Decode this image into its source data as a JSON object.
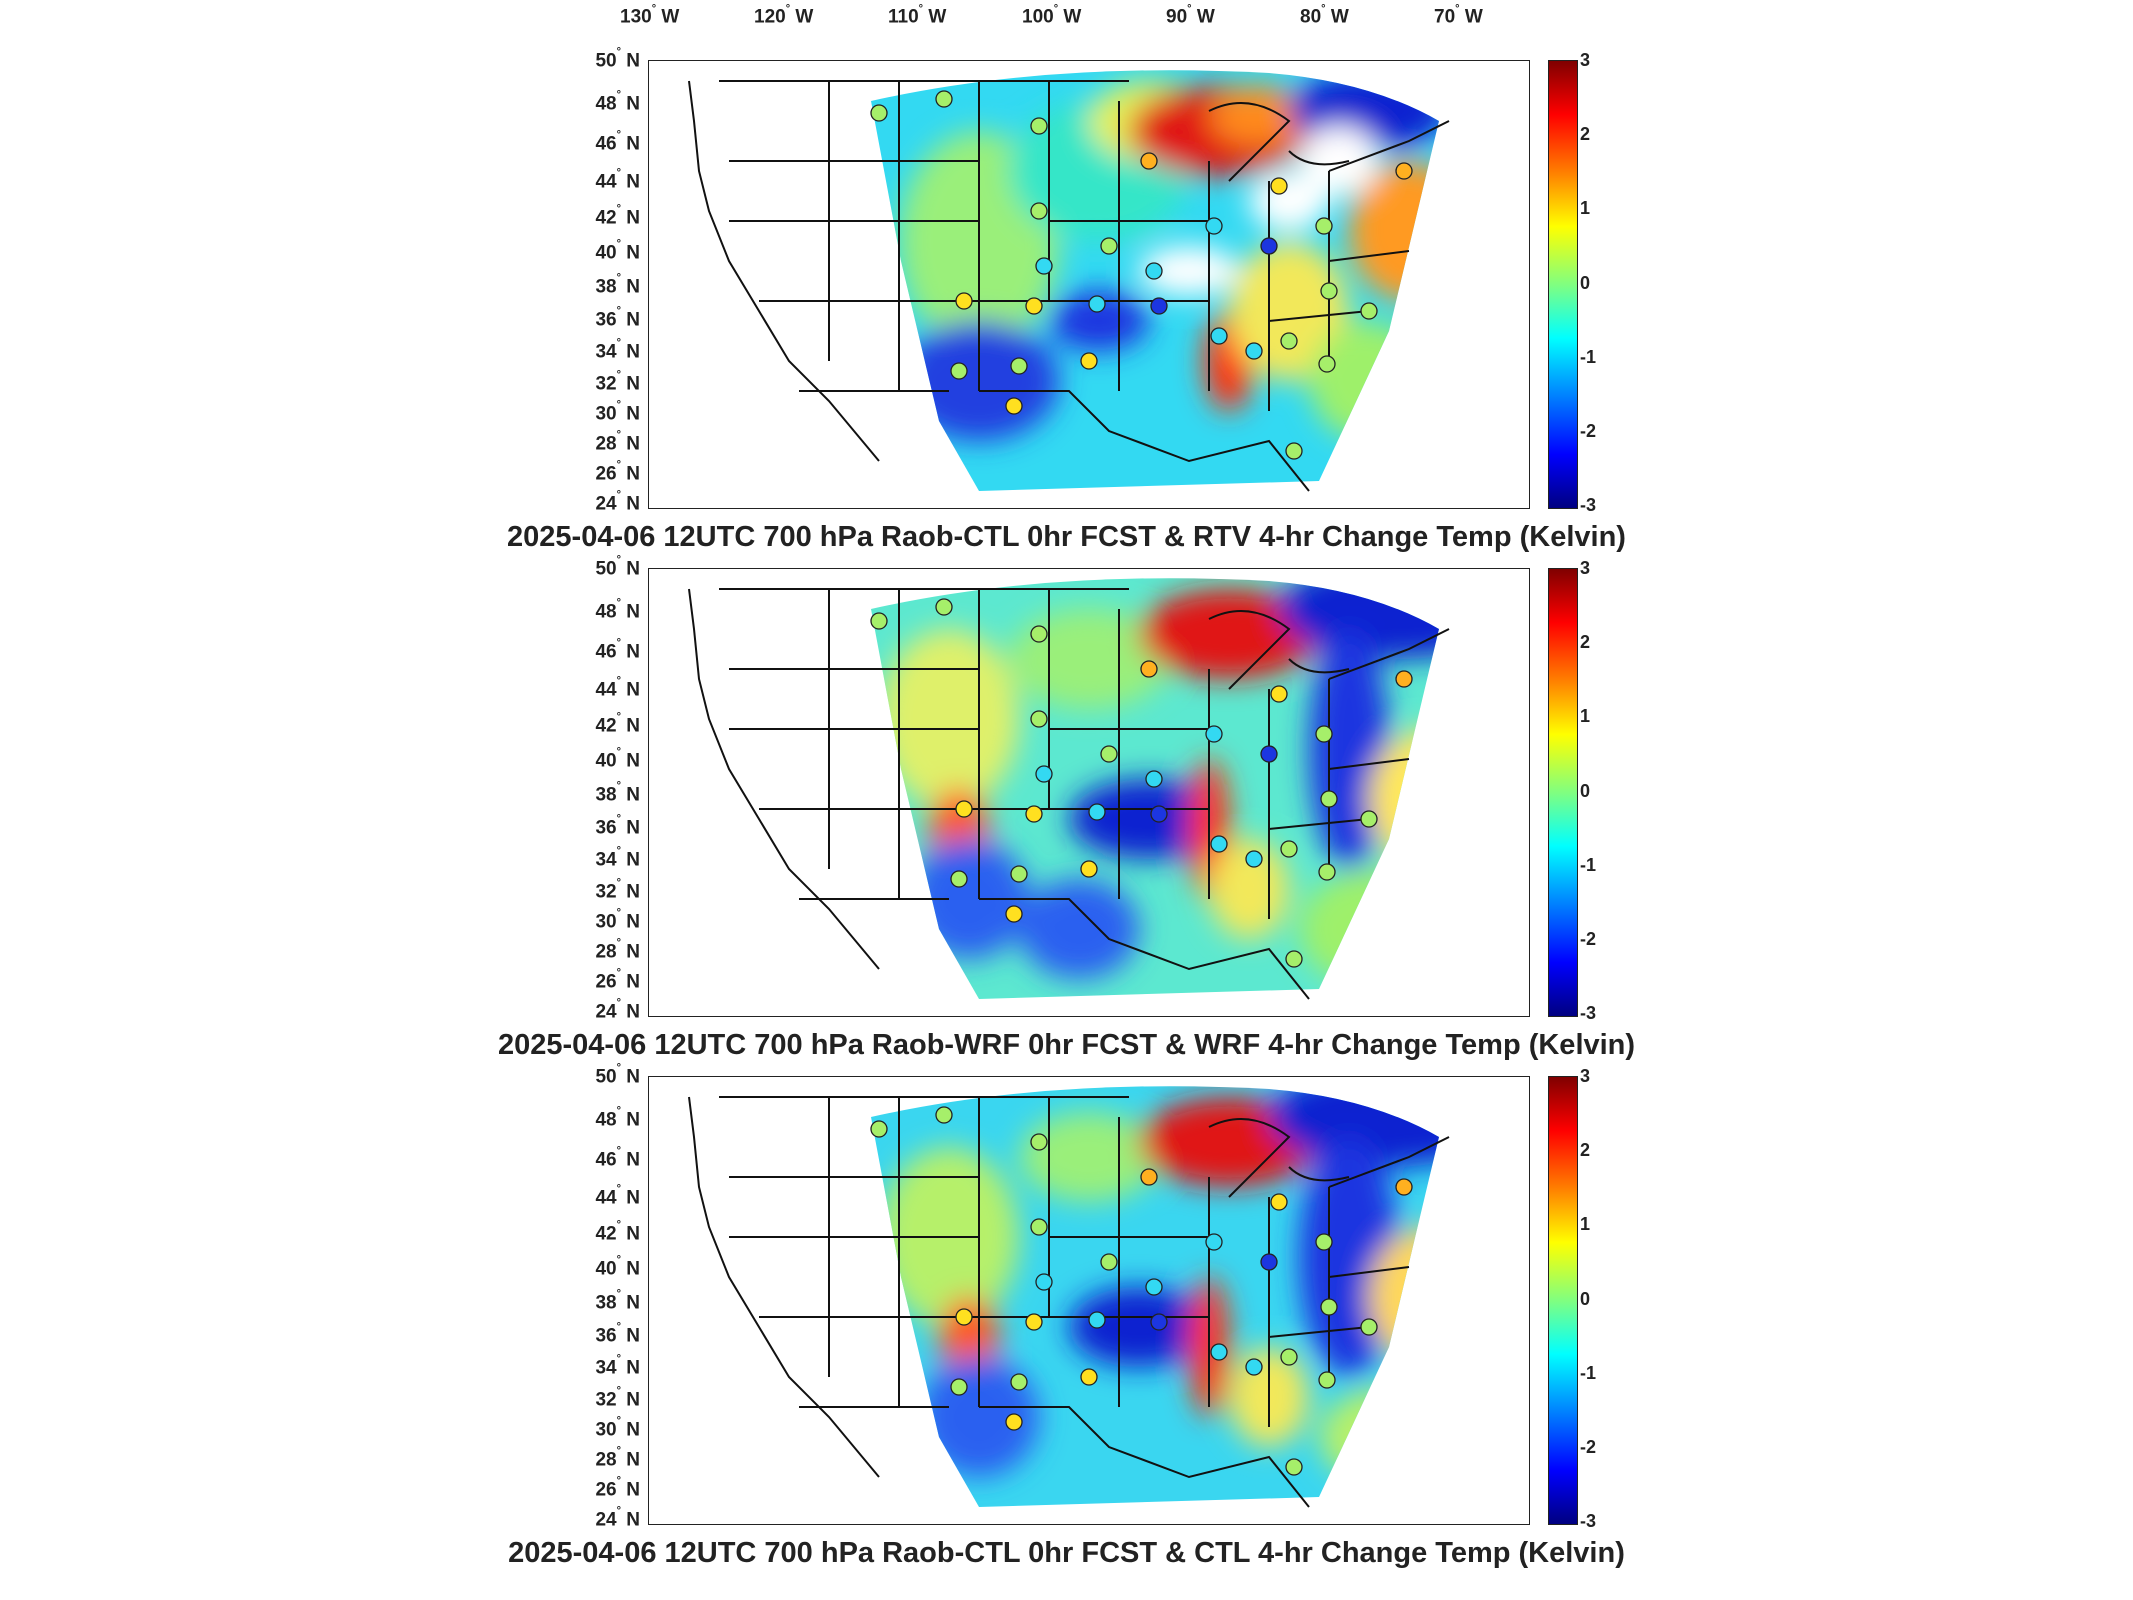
{
  "longitude_labels": [
    {
      "deg": "130",
      "dir": "W"
    },
    {
      "deg": "120",
      "dir": "W"
    },
    {
      "deg": "110",
      "dir": "W"
    },
    {
      "deg": "100",
      "dir": "W"
    },
    {
      "deg": "90",
      "dir": "W"
    },
    {
      "deg": "80",
      "dir": "W"
    },
    {
      "deg": "70",
      "dir": "W"
    }
  ],
  "latitude_labels": [
    "50",
    "48",
    "46",
    "44",
    "42",
    "40",
    "38",
    "36",
    "34",
    "32",
    "30",
    "28",
    "26",
    "24"
  ],
  "latitude_suffix": "N",
  "colorbar_ticks": [
    "3",
    "2",
    "1",
    "0",
    "-1",
    "-2",
    "-3"
  ],
  "colormap": [
    "#800000",
    "#ff0000",
    "#ff8000",
    "#ffff00",
    "#80ff80",
    "#00ffff",
    "#0080ff",
    "#0000ff",
    "#000080"
  ],
  "panels": [
    {
      "caption": "2025-04-06 12UTC 700 hPa Raob-CTL 0hr FCST & RTV 4-hr Change Temp (Kelvin)"
    },
    {
      "caption": "2025-04-06 12UTC 700 hPa Raob-WRF 0hr FCST & WRF 4-hr Change Temp (Kelvin)"
    },
    {
      "caption": "2025-04-06 12UTC 700 hPa Raob-CTL 0hr FCST & CTL 4-hr Change Temp (Kelvin)"
    }
  ]
}
